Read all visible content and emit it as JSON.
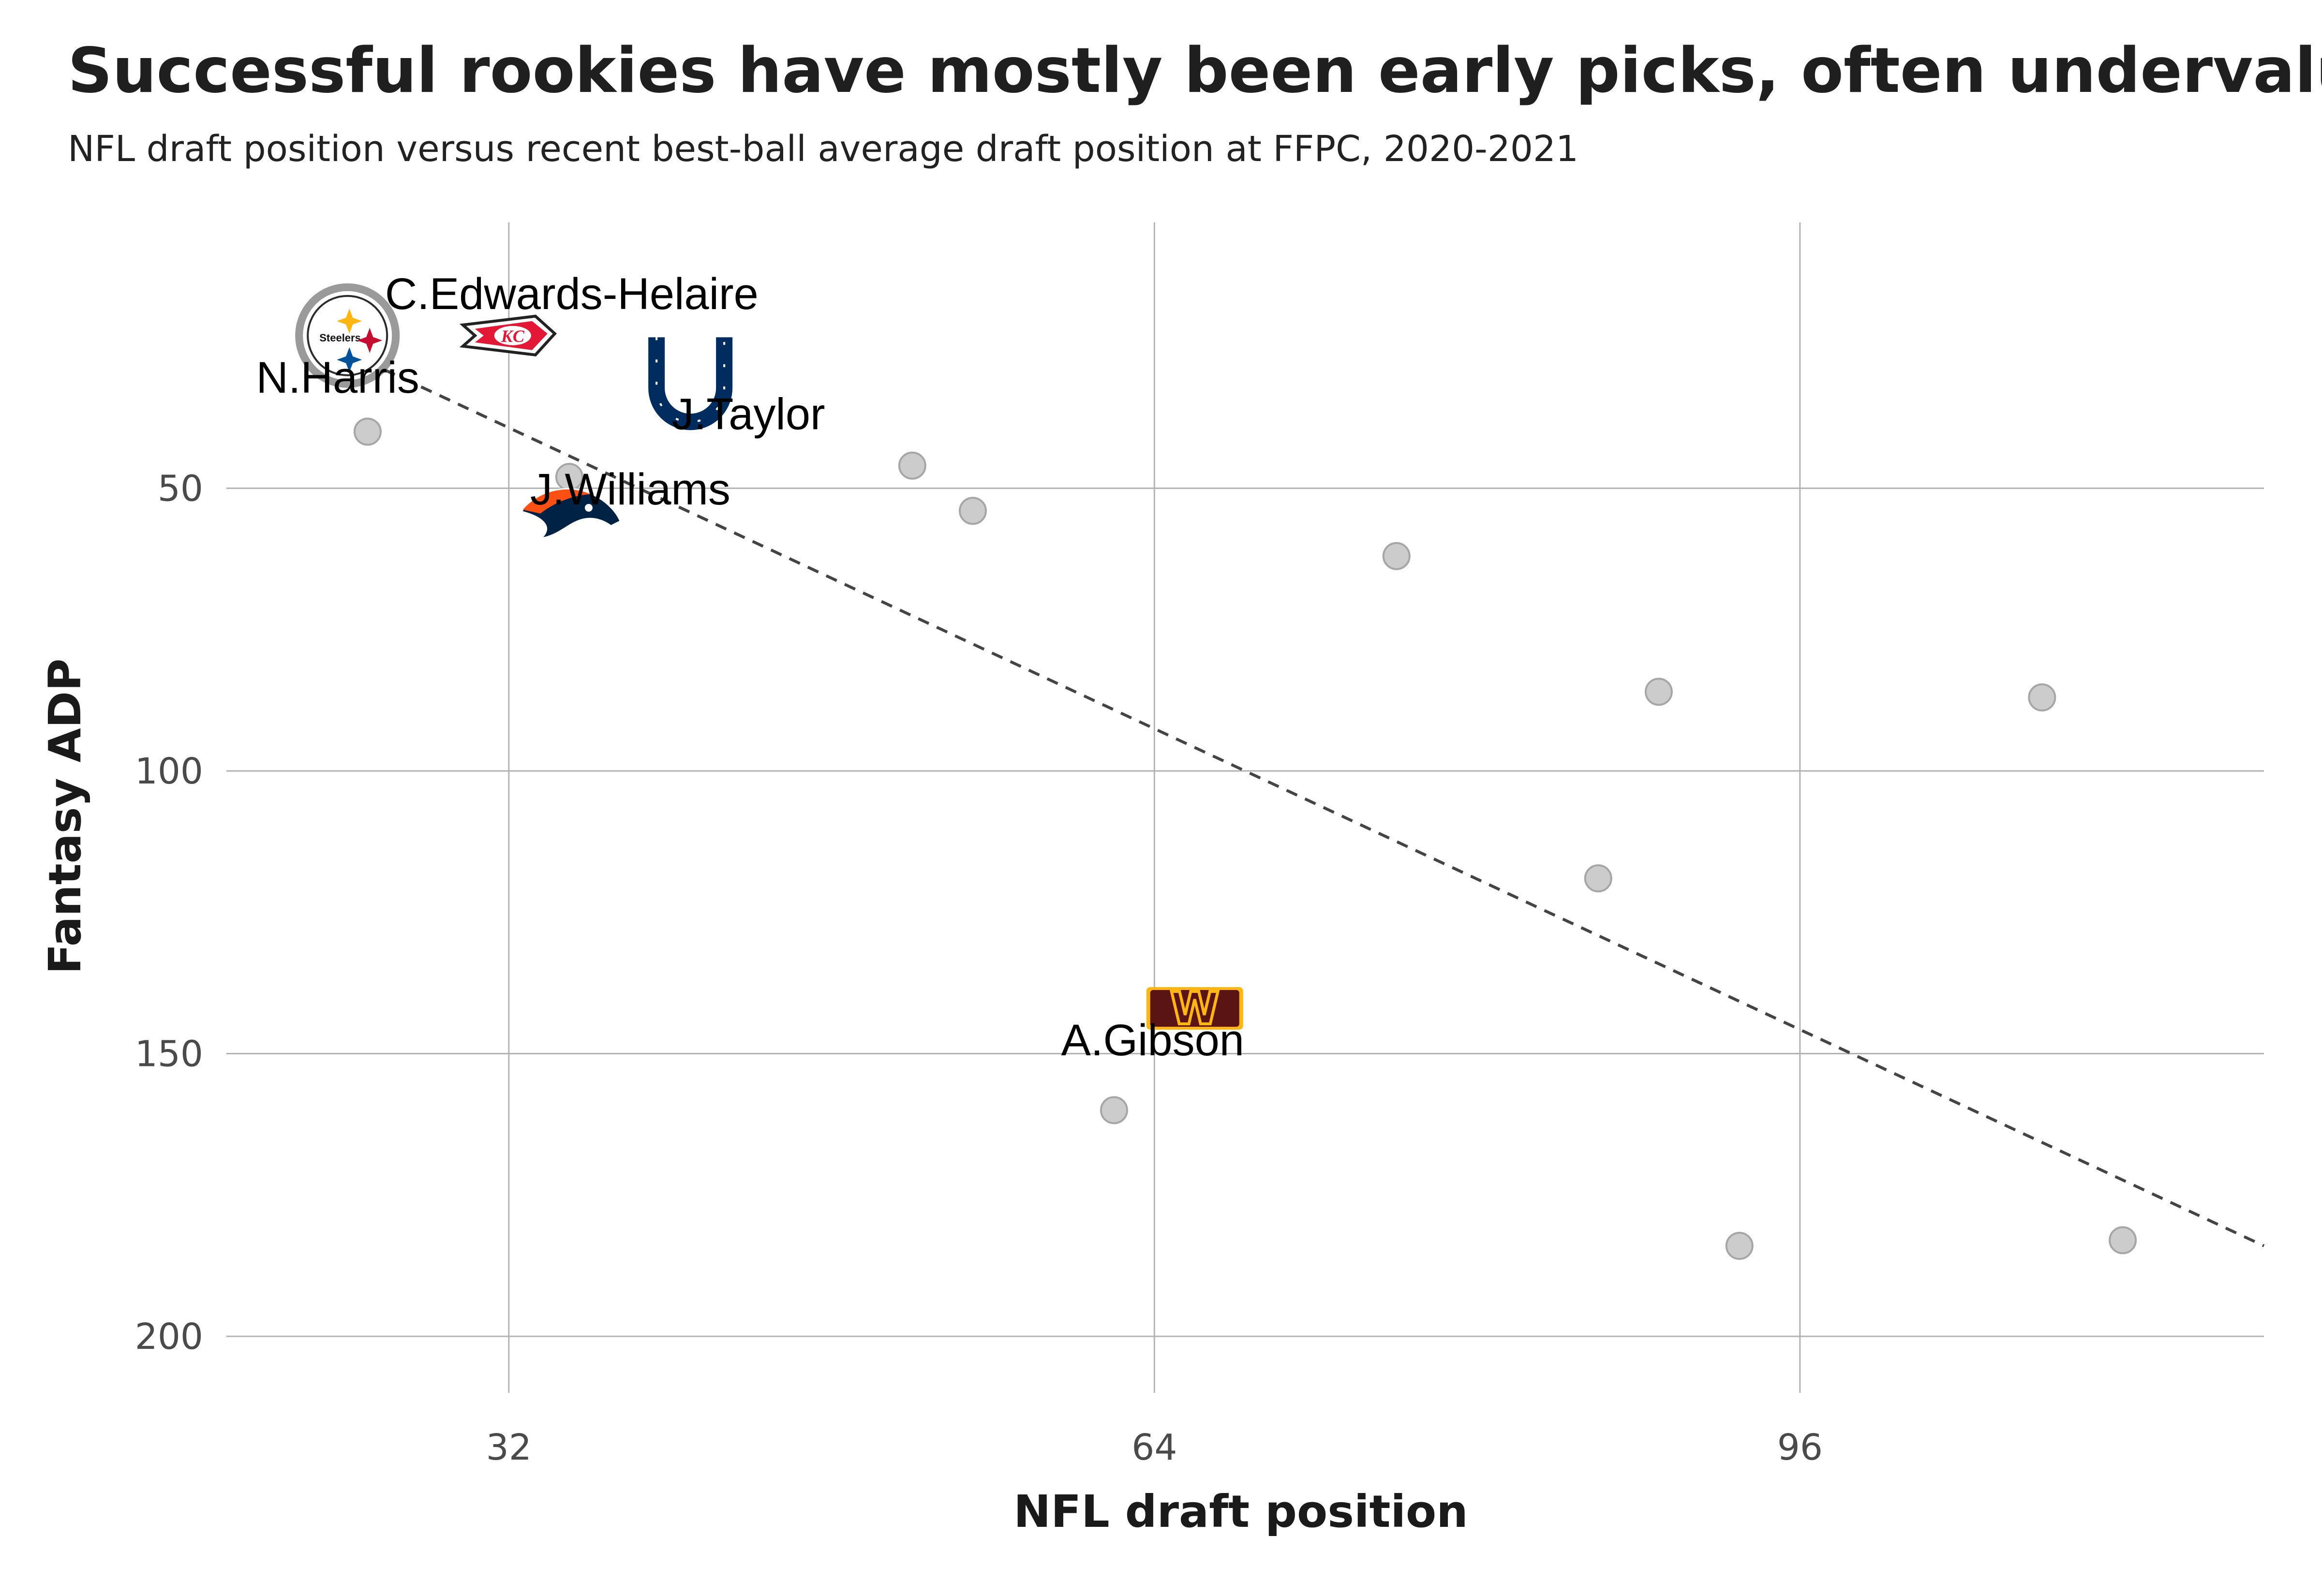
{
  "chart_data": {
    "type": "scatter",
    "title": "Successful rookies have mostly been early picks, often undervalued",
    "subtitle": "NFL draft position versus recent best-ball average draft position at FFPC, 2020-2021",
    "xlabel": "NFL draft position",
    "ylabel": "Fantasy ADP",
    "xlim": [
      18,
      119
    ],
    "ylim": [
      210,
      3
    ],
    "y_reversed": true,
    "xticks": [
      32,
      64,
      96
    ],
    "yticks": [
      50,
      100,
      150,
      200
    ],
    "grid": true,
    "points": [
      {
        "x": 25,
        "y": 40,
        "label": "",
        "team": ""
      },
      {
        "x": 35,
        "y": 48,
        "label": "",
        "team": ""
      },
      {
        "x": 52,
        "y": 46,
        "label": "",
        "team": ""
      },
      {
        "x": 55,
        "y": 54,
        "label": "",
        "team": ""
      },
      {
        "x": 76,
        "y": 62,
        "label": "",
        "team": ""
      },
      {
        "x": 89,
        "y": 86,
        "label": "",
        "team": ""
      },
      {
        "x": 108,
        "y": 87,
        "label": "",
        "team": ""
      },
      {
        "x": 86,
        "y": 119,
        "label": "",
        "team": ""
      },
      {
        "x": 62,
        "y": 160,
        "label": "",
        "team": ""
      },
      {
        "x": 93,
        "y": 184,
        "label": "",
        "team": ""
      },
      {
        "x": 112,
        "y": 183,
        "label": "",
        "team": ""
      },
      {
        "x": 24,
        "y": 23,
        "label": "N.Harris",
        "team": "steelers-logo"
      },
      {
        "x": 32,
        "y": 23,
        "label": "C.Edwards-Helaire",
        "team": "chiefs-logo"
      },
      {
        "x": 41,
        "y": 31,
        "label": "J.Taylor",
        "team": "colts-logo"
      },
      {
        "x": 35,
        "y": 55,
        "label": "J.Williams",
        "team": "broncos-logo"
      },
      {
        "x": 66,
        "y": 142,
        "label": "A.Gibson",
        "team": "commanders-logo"
      }
    ],
    "trendline": {
      "style": "dashed",
      "x": [
        24,
        119
      ],
      "y": [
        26,
        184
      ]
    }
  },
  "colors": {
    "grid": "#b3b3b3",
    "point_fill": "#cccccc",
    "point_stroke": "#a6a6a6",
    "trend": "#444444",
    "steelers_gold": "#FFB612",
    "steelers_red": "#C60C30",
    "steelers_blue": "#00539B",
    "chiefs_red": "#E31837",
    "colts_blue": "#002C5F",
    "broncos_orange": "#FB4F14",
    "broncos_navy": "#002244",
    "commanders_burgundy": "#5A1414",
    "commanders_gold": "#FFB612"
  },
  "logos": {
    "steelers_text": "Steelers",
    "chiefs_text": "KC",
    "commanders_text": "W"
  }
}
